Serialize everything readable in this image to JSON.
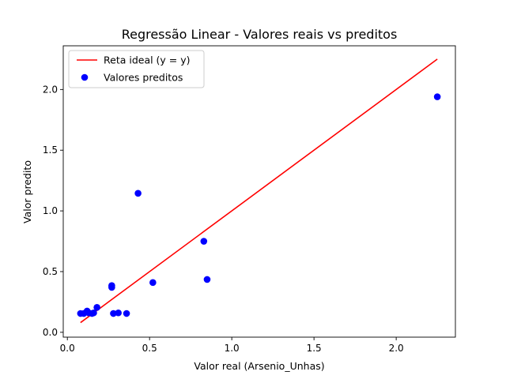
{
  "chart_data": {
    "type": "scatter",
    "title": "Regressão Linear - Valores reais vs preditos",
    "xlabel": "Valor real (Arsenio_Unhas)",
    "ylabel": "Valor predito",
    "xlim": [
      -0.025,
      2.36
    ],
    "ylim": [
      -0.04,
      2.36
    ],
    "xticks": [
      0.0,
      0.5,
      1.0,
      1.5,
      2.0
    ],
    "xtick_labels": [
      "0.0",
      "0.5",
      "1.0",
      "1.5",
      "2.0"
    ],
    "yticks": [
      0.0,
      0.5,
      1.0,
      1.5,
      2.0
    ],
    "ytick_labels": [
      "0.0",
      "0.5",
      "1.0",
      "1.5",
      "2.0"
    ],
    "grid": false,
    "legend_position": "top-left",
    "series": [
      {
        "name": "Reta ideal (y = y)",
        "kind": "line",
        "color": "#ff0000",
        "x": [
          0.08,
          2.25
        ],
        "y": [
          0.08,
          2.25
        ]
      },
      {
        "name": "Valores preditos",
        "kind": "scatter",
        "color": "#0000ff",
        "x": [
          0.08,
          0.1,
          0.12,
          0.13,
          0.15,
          0.16,
          0.18,
          0.27,
          0.27,
          0.28,
          0.31,
          0.36,
          0.43,
          0.52,
          0.83,
          0.85,
          2.25
        ],
        "y": [
          0.155,
          0.155,
          0.175,
          0.16,
          0.155,
          0.16,
          0.205,
          0.385,
          0.37,
          0.155,
          0.16,
          0.155,
          1.145,
          0.41,
          0.75,
          0.435,
          1.94
        ]
      }
    ]
  }
}
